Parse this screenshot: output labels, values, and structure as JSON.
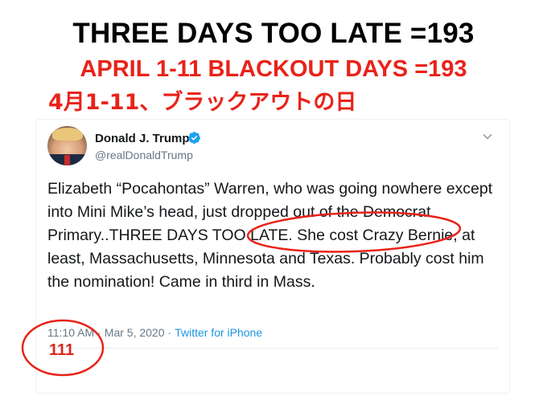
{
  "headline": {
    "line1": "THREE DAYS TOO LATE =193",
    "line2": "APRIL 1-11 BLACKOUT DAYS =193",
    "line3": "4月1-11、ブラックアウトの日"
  },
  "tweet": {
    "author_name": "Donald J. Trump",
    "author_handle": "@realDonaldTrump",
    "text_before": "Elizabeth “Pocahontas” Warren, who was going nowhere except into Mini Mike’s head, just dropped out of the Democrat Primary..",
    "text_highlight": "THREE DAYS TOO LATE.",
    "text_after": " She cost Crazy Bernie, at least, Massachusetts, Minnesota and Texas. Probably cost him the nomination! Came in third in Mass.",
    "time": "11:10 AM",
    "date": "Mar 5, 2020",
    "separator": "·",
    "source": "Twitter for iPhone",
    "annotation_count": "111"
  },
  "colors": {
    "annotation_red": "#e8231a",
    "twitter_blue": "#1b95e0",
    "text_dark": "#14171a",
    "text_muted": "#657786"
  },
  "icons": {
    "verified": "verified-badge-icon",
    "menu": "chevron-down-icon"
  }
}
